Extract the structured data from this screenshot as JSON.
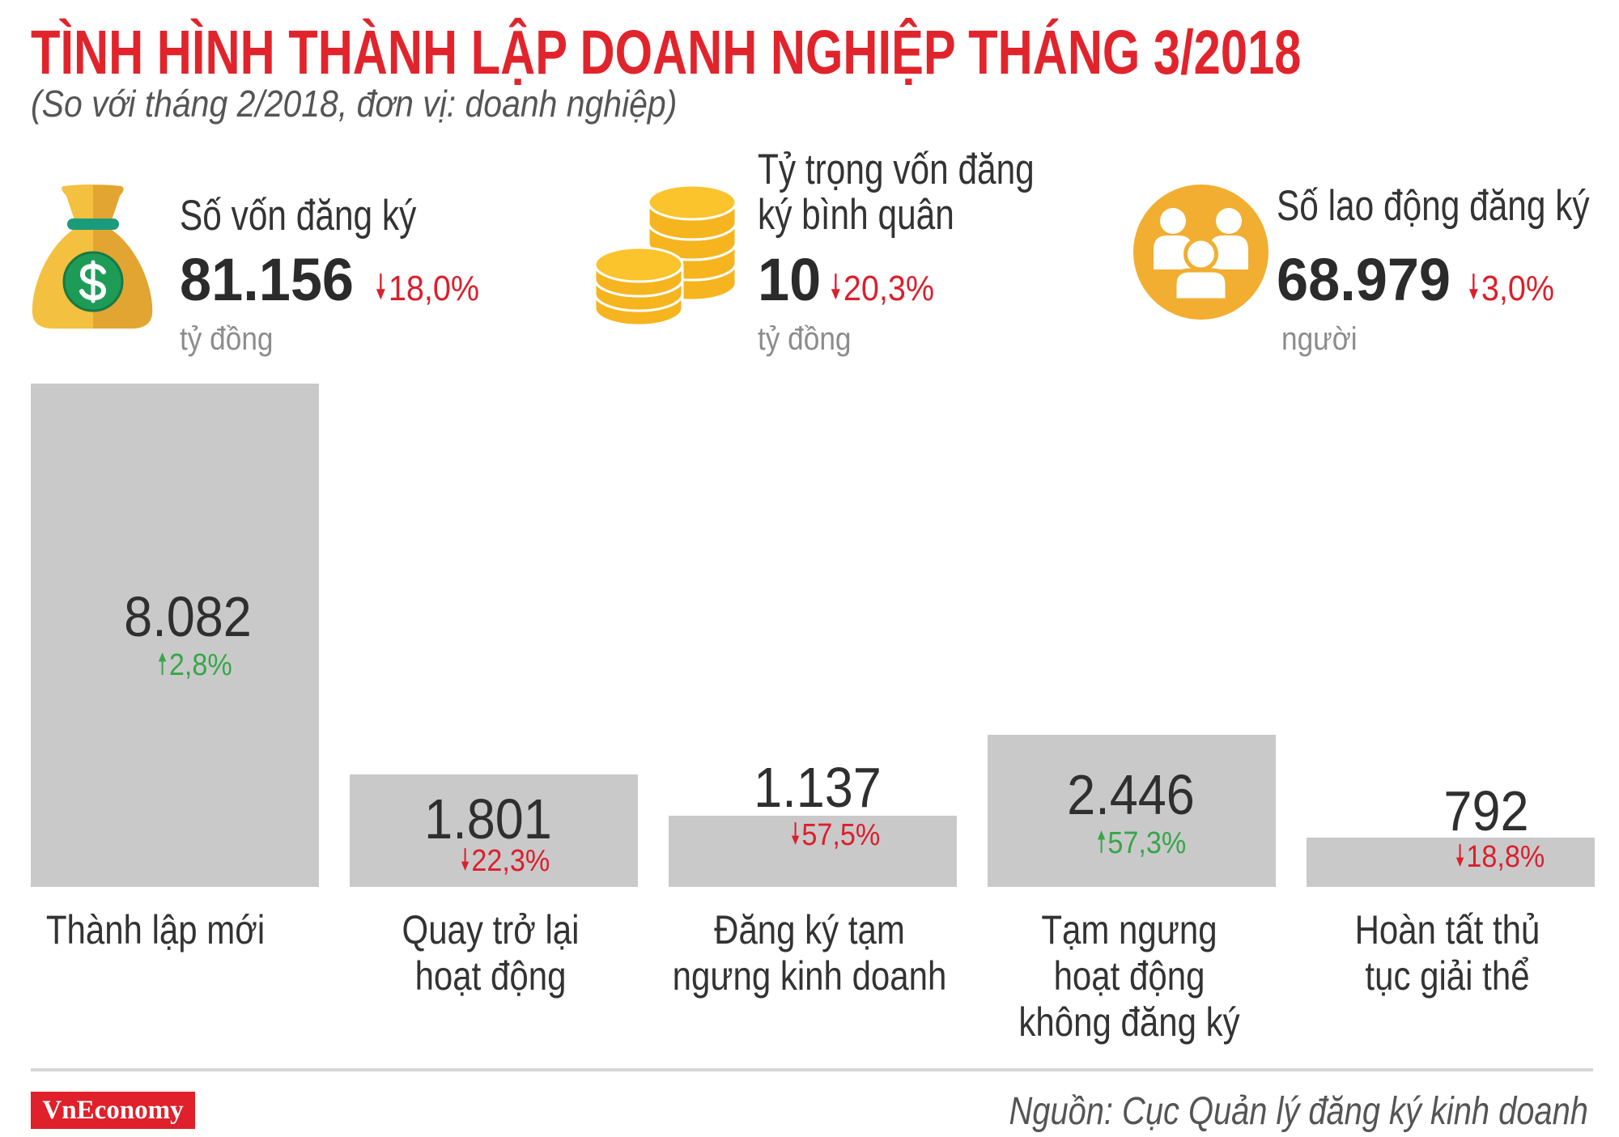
{
  "title": "TÌNH HÌNH THÀNH LẬP DOANH NGHIỆP THÁNG 3/2018",
  "subtitle": "(So với tháng 2/2018, đơn vị: doanh nghiệp)",
  "stats": [
    {
      "icon": "money-bag-icon",
      "label": "Số vốn đăng ký",
      "value": "81.156",
      "change": "18,0%",
      "direction": "down",
      "unit": "tỷ đồng"
    },
    {
      "icon": "coins-icon",
      "label": "Tỷ trọng vốn đăng\nký bình quân",
      "value": "10",
      "change": "20,3%",
      "direction": "down",
      "unit": "tỷ đồng"
    },
    {
      "icon": "people-group-icon",
      "label": "Số lao động đăng ký",
      "value": "68.979",
      "change": "3,0%",
      "direction": "down",
      "unit": "người"
    }
  ],
  "chart_data": {
    "type": "bar",
    "categories": [
      "Thành lập mới",
      "Quay trở lại\nhoạt động",
      "Đăng ký tạm\nngưng kinh doanh",
      "Tạm ngưng\nhoạt động\nkhông đăng ký",
      "Hoàn tất thủ\ntục giải thể"
    ],
    "values": [
      8082,
      1801,
      1137,
      2446,
      792
    ],
    "value_labels": [
      "8.082",
      "1.801",
      "1.137",
      "2.446",
      "792"
    ],
    "changes": [
      {
        "text": "2,8%",
        "direction": "up"
      },
      {
        "text": "22,3%",
        "direction": "down"
      },
      {
        "text": "57,5%",
        "direction": "down"
      },
      {
        "text": "57,3%",
        "direction": "up"
      },
      {
        "text": "18,8%",
        "direction": "down"
      }
    ],
    "grid": false,
    "legend": "none"
  },
  "footer": {
    "brand": "VnEconomy",
    "source": "Nguồn: Cục Quản lý đăng ký kinh doanh"
  },
  "colors": {
    "title": "#e1242c",
    "up": "#36a748",
    "down": "#dc1f2c",
    "bar": "#c9c9ca",
    "brand": "#e0202a",
    "icon_gold": "#f2ae30",
    "money_circle": "#1f9b58"
  }
}
